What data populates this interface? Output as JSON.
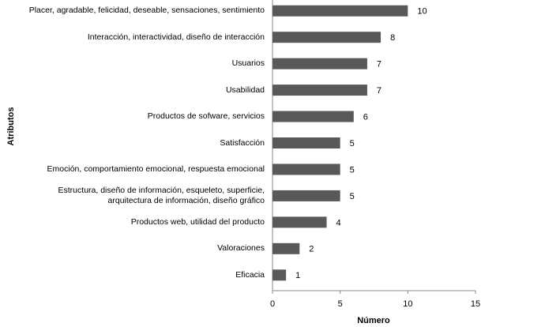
{
  "chart_data": {
    "type": "bar",
    "orientation": "horizontal",
    "x_label": "Número",
    "y_label": "Atributos",
    "categories": [
      "Placer, agradable, felicidad, deseable, sensaciones, sentimiento",
      "Interacción, interactividad, diseño de interacción",
      "Usuarios",
      "Usabilidad",
      "Productos de sofware, servicios",
      "Satisfacción",
      "Emoción, comportamiento emocional, respuesta emocional",
      "Estructura, diseño de información, esqueleto, superficie, arquitectura de información, diseño gráfico",
      "Productos web, utilidad del producto",
      "Valoraciones",
      "Eficacia"
    ],
    "values": [
      10,
      8,
      7,
      7,
      6,
      5,
      5,
      5,
      4,
      2,
      1
    ],
    "color": "#595959",
    "xlim": [
      0,
      15
    ],
    "xticks": [
      0,
      5,
      10,
      15
    ],
    "grid": false
  }
}
